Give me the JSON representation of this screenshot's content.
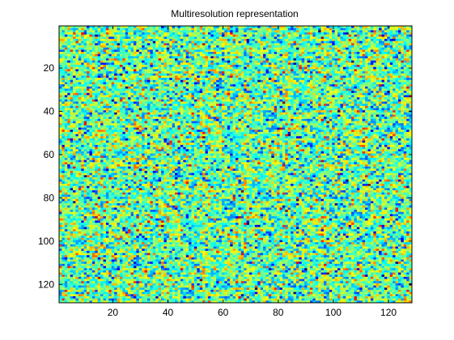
{
  "chart_data": {
    "type": "heatmap",
    "title": "Multiresolution representation",
    "xlabel": "",
    "ylabel": "",
    "rows": 128,
    "cols": 128,
    "xlim": [
      0.5,
      128.5
    ],
    "ylim": [
      0.5,
      128.5
    ],
    "y_axis_direction": "reversed",
    "x_ticks": [
      20,
      40,
      60,
      80,
      100,
      120
    ],
    "y_ticks": [
      20,
      40,
      60,
      80,
      100,
      120
    ],
    "colormap": "jet",
    "value_range": [
      0,
      1
    ],
    "value_mean": 0.47,
    "value_std": 0.15,
    "grid": false,
    "legend": "none",
    "colors": {
      "axis": "#000000",
      "background": "#ffffff"
    }
  }
}
